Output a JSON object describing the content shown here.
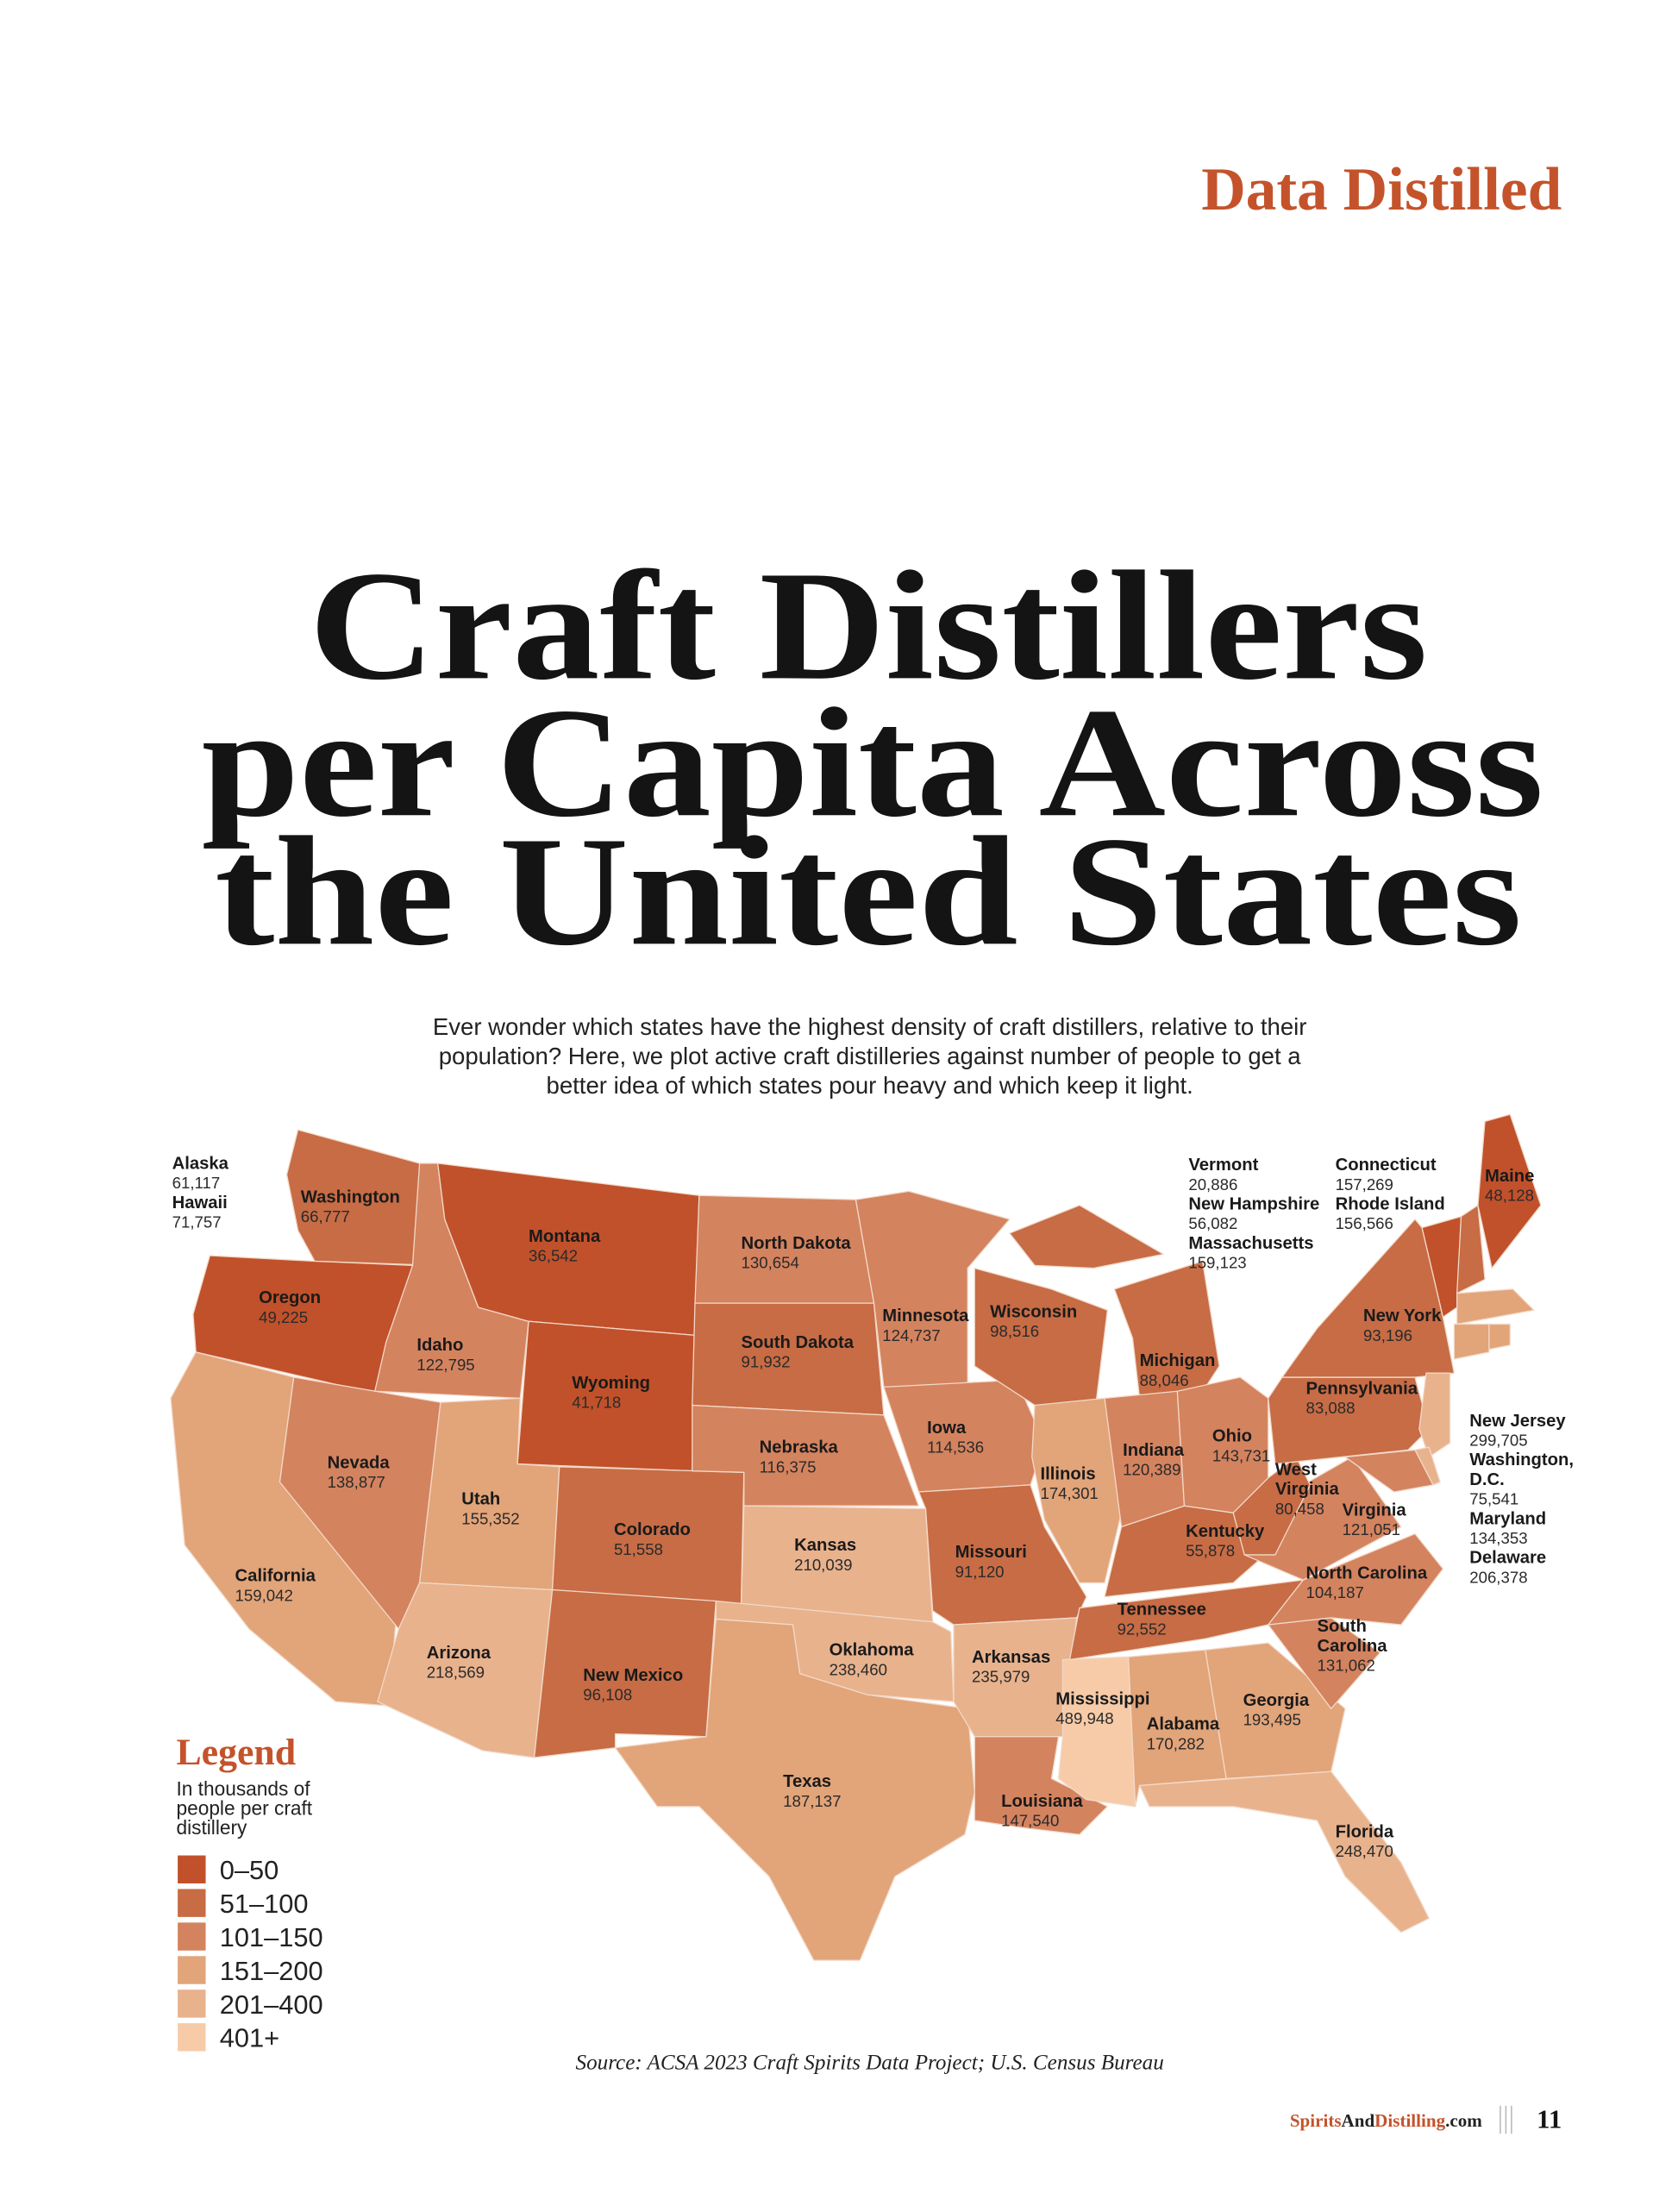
{
  "header": {
    "section": "Data Distilled"
  },
  "title": {
    "lines": [
      "Craft Distillers",
      "per Capita Across",
      "the United States"
    ]
  },
  "intro": {
    "lines": [
      "Ever wonder which states have the highest density of craft distillers, relative to their",
      "population? Here, we plot active craft distilleries against number of people to get a",
      "better idea of which states pour heavy and which keep it light."
    ]
  },
  "legend": {
    "title": "Legend",
    "subtitle_lines": [
      "In thousands of",
      "people per craft",
      "distillery"
    ],
    "bins": [
      {
        "label": "0–50",
        "min": 0,
        "max": 50,
        "color": "#c1512b"
      },
      {
        "label": "51–100",
        "min": 51,
        "max": 100,
        "color": "#c76c45"
      },
      {
        "label": "101–150",
        "min": 101,
        "max": 150,
        "color": "#d4835f"
      },
      {
        "label": "151–200",
        "min": 151,
        "max": 200,
        "color": "#e2a479"
      },
      {
        "label": "201–400",
        "min": 201,
        "max": 400,
        "color": "#e8b28d"
      },
      {
        "label": "401+",
        "min": 401,
        "max": null,
        "color": "#f7cba8"
      }
    ]
  },
  "chart_data": {
    "type": "choropleth",
    "unit": "people per craft distillery",
    "states": [
      {
        "name": "Alaska",
        "value": "61,117"
      },
      {
        "name": "Hawaii",
        "value": "71,757"
      },
      {
        "name": "Washington",
        "value": "66,777"
      },
      {
        "name": "Oregon",
        "value": "49,225"
      },
      {
        "name": "California",
        "value": "159,042"
      },
      {
        "name": "Idaho",
        "value": "122,795"
      },
      {
        "name": "Montana",
        "value": "36,542"
      },
      {
        "name": "Wyoming",
        "value": "41,718"
      },
      {
        "name": "Nevada",
        "value": "138,877"
      },
      {
        "name": "Utah",
        "value": "155,352"
      },
      {
        "name": "Colorado",
        "value": "51,558"
      },
      {
        "name": "Arizona",
        "value": "218,569"
      },
      {
        "name": "New Mexico",
        "value": "96,108"
      },
      {
        "name": "North Dakota",
        "value": "130,654"
      },
      {
        "name": "South Dakota",
        "value": "91,932"
      },
      {
        "name": "Nebraska",
        "value": "116,375"
      },
      {
        "name": "Kansas",
        "value": "210,039"
      },
      {
        "name": "Oklahoma",
        "value": "238,460"
      },
      {
        "name": "Texas",
        "value": "187,137"
      },
      {
        "name": "Minnesota",
        "value": "124,737"
      },
      {
        "name": "Iowa",
        "value": "114,536"
      },
      {
        "name": "Missouri",
        "value": "91,120"
      },
      {
        "name": "Arkansas",
        "value": "235,979"
      },
      {
        "name": "Louisiana",
        "value": "147,540"
      },
      {
        "name": "Wisconsin",
        "value": "98,516"
      },
      {
        "name": "Illinois",
        "value": "174,301"
      },
      {
        "name": "Michigan",
        "value": "88,046"
      },
      {
        "name": "Indiana",
        "value": "120,389"
      },
      {
        "name": "Ohio",
        "value": "143,731"
      },
      {
        "name": "Kentucky",
        "value": "55,878"
      },
      {
        "name": "Tennessee",
        "value": "92,552"
      },
      {
        "name": "Mississippi",
        "value": "489,948"
      },
      {
        "name": "Alabama",
        "value": "170,282"
      },
      {
        "name": "Georgia",
        "value": "193,495"
      },
      {
        "name": "Florida",
        "value": "248,470"
      },
      {
        "name": "South Carolina",
        "value": "131,062"
      },
      {
        "name": "North Carolina",
        "value": "104,187"
      },
      {
        "name": "Virginia",
        "value": "121,051"
      },
      {
        "name": "West Virginia",
        "value": "80,458"
      },
      {
        "name": "Pennsylvania",
        "value": "83,088"
      },
      {
        "name": "New York",
        "value": "93,196"
      },
      {
        "name": "Vermont",
        "value": "20,886"
      },
      {
        "name": "New Hampshire",
        "value": "56,082"
      },
      {
        "name": "Maine",
        "value": "48,128"
      },
      {
        "name": "Massachusetts",
        "value": "159,123"
      },
      {
        "name": "Connecticut",
        "value": "157,269"
      },
      {
        "name": "Rhode Island",
        "value": "156,566"
      },
      {
        "name": "New Jersey",
        "value": "299,705"
      },
      {
        "name": "Washington, D.C.",
        "value": "75,541"
      },
      {
        "name": "Maryland",
        "value": "134,353"
      },
      {
        "name": "Delaware",
        "value": "206,378"
      }
    ]
  },
  "source": "Source: ACSA 2023 Craft Spirits Data Project; U.S. Census Bureau",
  "footer": {
    "site_part1": "Spirits",
    "site_part2": "And",
    "site_part3": "Distilling",
    "site_part4": ".com",
    "page_number": "11"
  },
  "colors": {
    "accent": "#c4532b",
    "text": "#141414"
  }
}
